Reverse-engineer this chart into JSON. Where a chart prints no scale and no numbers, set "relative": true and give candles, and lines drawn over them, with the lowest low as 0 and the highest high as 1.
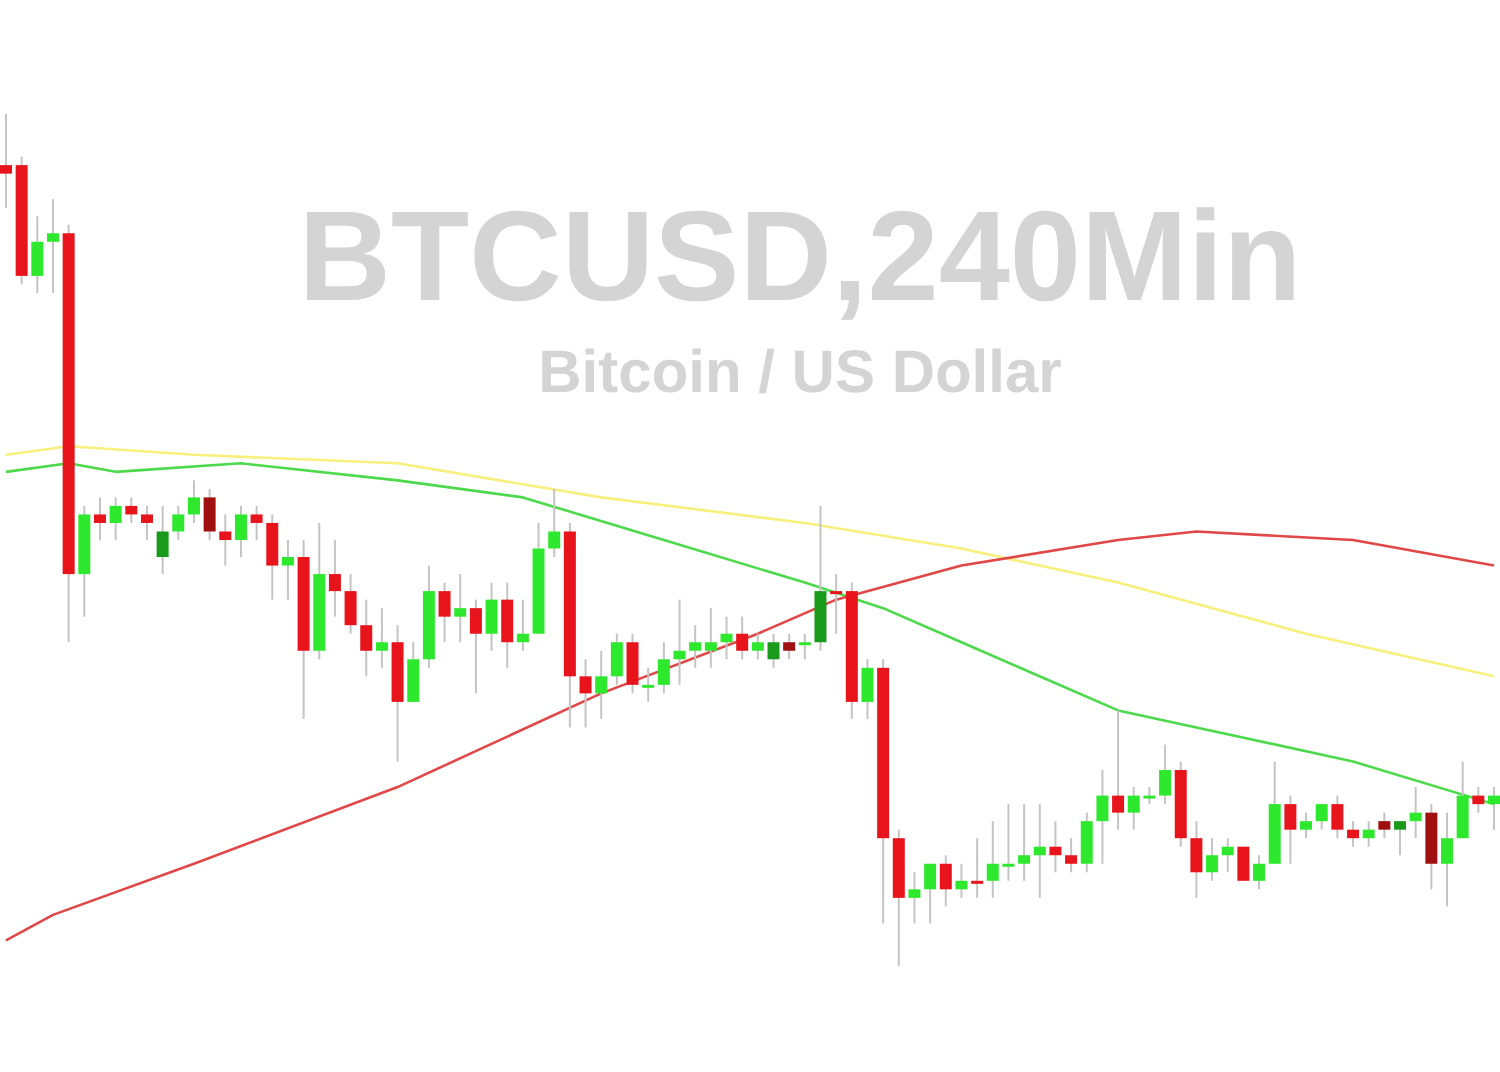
{
  "chart_data": {
    "type": "candlestick",
    "title": "BTCUSD,240Min",
    "subtitle": "Bitcoin / US Dollar",
    "relative": true,
    "categories": [
      null,
      null,
      null,
      null,
      null,
      null,
      null,
      null,
      null,
      null,
      null,
      null,
      null,
      null,
      null,
      null,
      null,
      null,
      null,
      null,
      null,
      null,
      null,
      null,
      null,
      null,
      null,
      null,
      null,
      null,
      null,
      null,
      null,
      null,
      null,
      null,
      null,
      null,
      null,
      null,
      null,
      null,
      null,
      null,
      null,
      null,
      null,
      null,
      null,
      null,
      null,
      null,
      null,
      null,
      null,
      null,
      null,
      null,
      null,
      null,
      null,
      null,
      null,
      null,
      null,
      null,
      null,
      null,
      null,
      null,
      null,
      null,
      null,
      null,
      null,
      null,
      null,
      null,
      null,
      null,
      null,
      null,
      null,
      null,
      null,
      null,
      null,
      null,
      null,
      null,
      null,
      null,
      null,
      null,
      null,
      null
    ],
    "ohlc": [
      [
        0.94,
        1.0,
        0.89,
        0.93
      ],
      [
        0.94,
        0.95,
        0.8,
        0.81
      ],
      [
        0.81,
        0.88,
        0.79,
        0.85
      ],
      [
        0.85,
        0.9,
        0.79,
        0.86
      ],
      [
        0.86,
        0.87,
        0.38,
        0.46
      ],
      [
        0.46,
        0.54,
        0.41,
        0.53
      ],
      [
        0.53,
        0.55,
        0.5,
        0.52
      ],
      [
        0.52,
        0.55,
        0.5,
        0.54
      ],
      [
        0.54,
        0.55,
        0.52,
        0.53
      ],
      [
        0.53,
        0.54,
        0.5,
        0.52
      ],
      [
        0.48,
        0.54,
        0.46,
        0.51
      ],
      [
        0.51,
        0.54,
        0.5,
        0.53
      ],
      [
        0.53,
        0.57,
        0.52,
        0.55
      ],
      [
        0.55,
        0.56,
        0.5,
        0.51
      ],
      [
        0.51,
        0.53,
        0.47,
        0.5
      ],
      [
        0.5,
        0.54,
        0.48,
        0.53
      ],
      [
        0.53,
        0.54,
        0.5,
        0.52
      ],
      [
        0.52,
        0.53,
        0.43,
        0.47
      ],
      [
        0.47,
        0.5,
        0.43,
        0.48
      ],
      [
        0.48,
        0.5,
        0.29,
        0.37
      ],
      [
        0.37,
        0.52,
        0.36,
        0.46
      ],
      [
        0.46,
        0.5,
        0.41,
        0.44
      ],
      [
        0.44,
        0.46,
        0.39,
        0.4
      ],
      [
        0.4,
        0.43,
        0.34,
        0.37
      ],
      [
        0.37,
        0.42,
        0.35,
        0.38
      ],
      [
        0.38,
        0.4,
        0.24,
        0.31
      ],
      [
        0.31,
        0.38,
        0.31,
        0.36
      ],
      [
        0.36,
        0.47,
        0.35,
        0.44
      ],
      [
        0.44,
        0.45,
        0.38,
        0.41
      ],
      [
        0.41,
        0.46,
        0.38,
        0.42
      ],
      [
        0.42,
        0.43,
        0.32,
        0.39
      ],
      [
        0.39,
        0.45,
        0.37,
        0.43
      ],
      [
        0.43,
        0.45,
        0.35,
        0.38
      ],
      [
        0.38,
        0.43,
        0.37,
        0.39
      ],
      [
        0.39,
        0.52,
        0.39,
        0.49
      ],
      [
        0.49,
        0.56,
        0.48,
        0.51
      ],
      [
        0.51,
        0.52,
        0.28,
        0.34
      ],
      [
        0.34,
        0.36,
        0.28,
        0.32
      ],
      [
        0.32,
        0.37,
        0.29,
        0.34
      ],
      [
        0.34,
        0.39,
        0.33,
        0.38
      ],
      [
        0.38,
        0.39,
        0.32,
        0.33
      ],
      [
        0.33,
        0.35,
        0.31,
        0.33
      ],
      [
        0.33,
        0.38,
        0.32,
        0.36
      ],
      [
        0.36,
        0.43,
        0.33,
        0.37
      ],
      [
        0.37,
        0.4,
        0.35,
        0.38
      ],
      [
        0.37,
        0.42,
        0.35,
        0.38
      ],
      [
        0.38,
        0.41,
        0.36,
        0.39
      ],
      [
        0.39,
        0.41,
        0.36,
        0.37
      ],
      [
        0.37,
        0.39,
        0.36,
        0.38
      ],
      [
        0.36,
        0.39,
        0.35,
        0.38
      ],
      [
        0.38,
        0.39,
        0.36,
        0.37
      ],
      [
        0.38,
        0.39,
        0.36,
        0.38
      ],
      [
        0.38,
        0.54,
        0.37,
        0.44
      ],
      [
        0.44,
        0.46,
        0.39,
        0.44
      ],
      [
        0.44,
        0.45,
        0.29,
        0.31
      ],
      [
        0.31,
        0.36,
        0.29,
        0.35
      ],
      [
        0.35,
        0.36,
        0.05,
        0.15
      ],
      [
        0.15,
        0.16,
        0.0,
        0.08
      ],
      [
        0.08,
        0.11,
        0.05,
        0.09
      ],
      [
        0.09,
        0.12,
        0.05,
        0.12
      ],
      [
        0.12,
        0.13,
        0.07,
        0.09
      ],
      [
        0.09,
        0.12,
        0.08,
        0.1
      ],
      [
        0.1,
        0.15,
        0.08,
        0.1
      ],
      [
        0.1,
        0.17,
        0.08,
        0.12
      ],
      [
        0.12,
        0.19,
        0.1,
        0.12
      ],
      [
        0.12,
        0.19,
        0.1,
        0.13
      ],
      [
        0.13,
        0.19,
        0.08,
        0.14
      ],
      [
        0.14,
        0.17,
        0.11,
        0.13
      ],
      [
        0.13,
        0.15,
        0.11,
        0.12
      ],
      [
        0.12,
        0.18,
        0.11,
        0.17
      ],
      [
        0.17,
        0.23,
        0.12,
        0.2
      ],
      [
        0.2,
        0.3,
        0.16,
        0.18
      ],
      [
        0.18,
        0.21,
        0.16,
        0.2
      ],
      [
        0.2,
        0.21,
        0.19,
        0.2
      ],
      [
        0.2,
        0.26,
        0.19,
        0.23
      ],
      [
        0.23,
        0.24,
        0.14,
        0.15
      ],
      [
        0.15,
        0.17,
        0.08,
        0.11
      ],
      [
        0.11,
        0.15,
        0.1,
        0.13
      ],
      [
        0.13,
        0.15,
        0.11,
        0.14
      ],
      [
        0.14,
        0.14,
        0.1,
        0.1
      ],
      [
        0.1,
        0.13,
        0.09,
        0.12
      ],
      [
        0.12,
        0.24,
        0.12,
        0.19
      ],
      [
        0.19,
        0.2,
        0.12,
        0.16
      ],
      [
        0.16,
        0.18,
        0.15,
        0.17
      ],
      [
        0.17,
        0.19,
        0.16,
        0.19
      ],
      [
        0.19,
        0.2,
        0.15,
        0.16
      ],
      [
        0.16,
        0.17,
        0.14,
        0.15
      ],
      [
        0.15,
        0.17,
        0.14,
        0.16
      ],
      [
        0.17,
        0.18,
        0.15,
        0.16
      ],
      [
        0.16,
        0.17,
        0.13,
        0.17
      ],
      [
        0.17,
        0.21,
        0.15,
        0.18
      ],
      [
        0.18,
        0.19,
        0.09,
        0.12
      ],
      [
        0.12,
        0.18,
        0.07,
        0.15
      ],
      [
        0.15,
        0.24,
        0.15,
        0.2
      ],
      [
        0.2,
        0.21,
        0.18,
        0.19
      ],
      [
        0.19,
        0.21,
        0.16,
        0.2
      ]
    ],
    "colors": [
      "#e8141c",
      "#e8141c",
      "#2ee82e",
      "#2ee82e",
      "#e8141c",
      "#2ee82e",
      "#e8141c",
      "#2ee82e",
      "#e8141c",
      "#e8141c",
      "#1a9a1a",
      "#2ee82e",
      "#2ee82e",
      "#a01010",
      "#e8141c",
      "#2ee82e",
      "#e8141c",
      "#e8141c",
      "#2ee82e",
      "#e8141c",
      "#2ee82e",
      "#e8141c",
      "#e8141c",
      "#e8141c",
      "#2ee82e",
      "#e8141c",
      "#2ee82e",
      "#2ee82e",
      "#e8141c",
      "#2ee82e",
      "#e8141c",
      "#2ee82e",
      "#e8141c",
      "#2ee82e",
      "#2ee82e",
      "#2ee82e",
      "#e8141c",
      "#e8141c",
      "#2ee82e",
      "#2ee82e",
      "#e8141c",
      "#2ee82e",
      "#2ee82e",
      "#2ee82e",
      "#2ee82e",
      "#2ee82e",
      "#2ee82e",
      "#e8141c",
      "#2ee82e",
      "#1a9a1a",
      "#a01010",
      "#2ee82e",
      "#1a9a1a",
      "#e8141c",
      "#e8141c",
      "#2ee82e",
      "#e8141c",
      "#e8141c",
      "#2ee82e",
      "#2ee82e",
      "#e8141c",
      "#2ee82e",
      "#e8141c",
      "#2ee82e",
      "#2ee82e",
      "#2ee82e",
      "#2ee82e",
      "#e8141c",
      "#e8141c",
      "#2ee82e",
      "#2ee82e",
      "#e8141c",
      "#2ee82e",
      "#2ee82e",
      "#2ee82e",
      "#e8141c",
      "#e8141c",
      "#2ee82e",
      "#2ee82e",
      "#e8141c",
      "#2ee82e",
      "#2ee82e",
      "#e8141c",
      "#2ee82e",
      "#2ee82e",
      "#e8141c",
      "#e8141c",
      "#2ee82e",
      "#a01010",
      "#1a9a1a",
      "#2ee82e",
      "#a01010",
      "#2ee82e",
      "#2ee82e",
      "#e8141c",
      "#2ee82e"
    ],
    "series": [
      {
        "type": "line",
        "color": "#f7f07c",
        "values": [
          0.6,
          null,
          null,
          null,
          0.61,
          null,
          null,
          null,
          null,
          null,
          null,
          null,
          0.6,
          null,
          null,
          null,
          null,
          null,
          null,
          null,
          null,
          null,
          null,
          null,
          null,
          0.59,
          null,
          null,
          null,
          null,
          null,
          null,
          null,
          null,
          null,
          null,
          null,
          null,
          0.55,
          null,
          null,
          null,
          null,
          null,
          null,
          null,
          null,
          null,
          null,
          null,
          null,
          0.52,
          null,
          null,
          null,
          null,
          null,
          null,
          null,
          null,
          null,
          0.49,
          null,
          null,
          null,
          null,
          null,
          null,
          null,
          null,
          null,
          0.45,
          null,
          null,
          null,
          null,
          null,
          null,
          null,
          null,
          null,
          null,
          null,
          0.39,
          null,
          null,
          null,
          null,
          null,
          null,
          null,
          null,
          null,
          null,
          null,
          0.34
        ]
      },
      {
        "type": "line",
        "color": "#4cd94c",
        "values": [
          0.58,
          null,
          null,
          null,
          0.59,
          null,
          null,
          0.58,
          null,
          null,
          null,
          null,
          null,
          null,
          null,
          0.59,
          null,
          null,
          null,
          null,
          null,
          null,
          null,
          null,
          null,
          0.57,
          null,
          null,
          null,
          null,
          null,
          null,
          null,
          0.55,
          null,
          null,
          null,
          null,
          null,
          null,
          null,
          null,
          0.5,
          null,
          null,
          null,
          null,
          null,
          null,
          null,
          null,
          0.45,
          null,
          null,
          null,
          null,
          0.42,
          null,
          null,
          null,
          null,
          0.38,
          null,
          null,
          null,
          null,
          null,
          null,
          null,
          null,
          null,
          0.3,
          null,
          null,
          null,
          null,
          0.28,
          null,
          null,
          null,
          null,
          null,
          null,
          null,
          null,
          null,
          0.24,
          null,
          null,
          null,
          null,
          null,
          null,
          null,
          null,
          0.19
        ]
      },
      {
        "type": "line",
        "color": "#e04848",
        "values": [
          0.03,
          null,
          null,
          0.06,
          null,
          null,
          null,
          null,
          null,
          null,
          null,
          null,
          0.12,
          null,
          null,
          null,
          null,
          null,
          null,
          null,
          null,
          null,
          null,
          null,
          null,
          0.21,
          null,
          null,
          null,
          null,
          null,
          null,
          null,
          null,
          null,
          null,
          null,
          null,
          0.32,
          null,
          null,
          null,
          null,
          null,
          null,
          null,
          null,
          null,
          0.39,
          null,
          null,
          null,
          null,
          0.43,
          null,
          null,
          null,
          null,
          null,
          null,
          null,
          0.47,
          null,
          null,
          null,
          null,
          null,
          null,
          null,
          null,
          null,
          0.5,
          null,
          null,
          null,
          null,
          0.51,
          null,
          null,
          null,
          null,
          null,
          null,
          null,
          null,
          null,
          0.5,
          null,
          null,
          null,
          null,
          null,
          null,
          null,
          null,
          0.47
        ]
      }
    ]
  }
}
